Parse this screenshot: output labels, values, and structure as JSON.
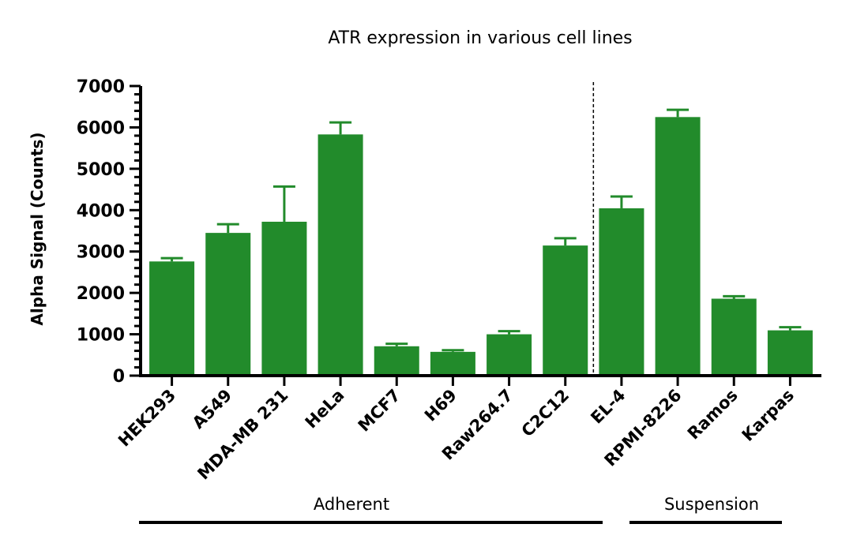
{
  "chart_data": {
    "type": "bar",
    "title": "ATR expression in various cell lines",
    "xlabel": "",
    "ylabel": "Alpha Signal (Counts)",
    "ylim": [
      0,
      7000
    ],
    "yticks": [
      0,
      1000,
      2000,
      3000,
      4000,
      5000,
      6000,
      7000
    ],
    "grid": false,
    "bar_color": "#228B2B",
    "categories": [
      "HEK293",
      "A549",
      "MDA-MB 231",
      "HeLa",
      "MCF7",
      "H69",
      "Raw264.7",
      "C2C12",
      "EL-4",
      "RPMI-8226",
      "Ramos",
      "Karpas"
    ],
    "values": [
      2760,
      3450,
      3720,
      5830,
      710,
      575,
      1000,
      3145,
      4045,
      6250,
      1860,
      1095
    ],
    "error_upper": [
      2840,
      3660,
      4570,
      6120,
      770,
      615,
      1075,
      3320,
      4330,
      6425,
      1920,
      1170
    ],
    "groups": [
      {
        "label": "Adherent",
        "categories": [
          "HEK293",
          "A549",
          "MDA-MB 231",
          "HeLa",
          "MCF7",
          "H69",
          "Raw264.7",
          "C2C12"
        ]
      },
      {
        "label": "Suspension",
        "categories": [
          "EL-4",
          "RPMI-8226",
          "Ramos",
          "Karpas"
        ]
      }
    ]
  }
}
